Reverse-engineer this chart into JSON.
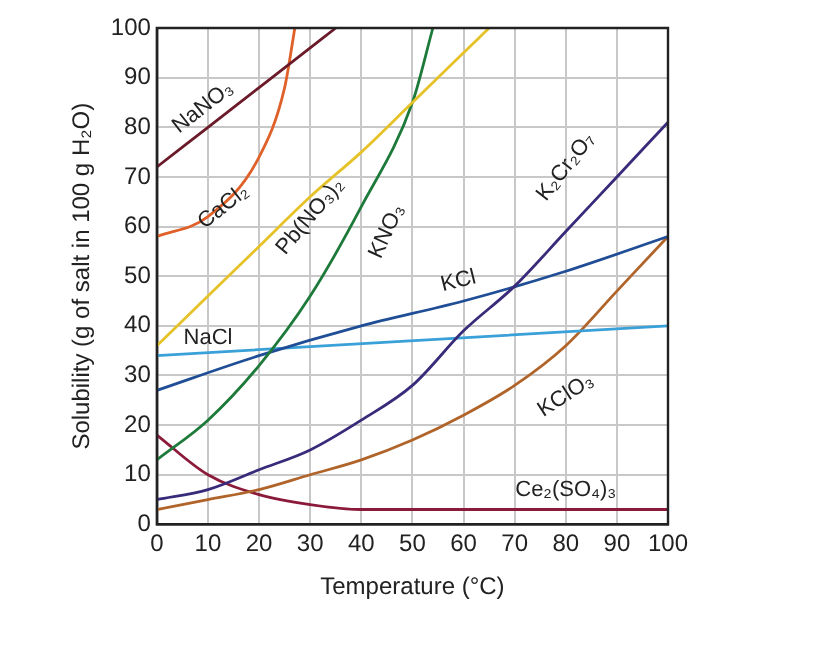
{
  "chart_data": {
    "type": "line",
    "xlabel": "Temperature (°C)",
    "ylabel": "Solubility (g of salt in 100 g H₂O)",
    "xlim": [
      0,
      100
    ],
    "ylim": [
      0,
      100
    ],
    "xticks": [
      0,
      10,
      20,
      30,
      40,
      50,
      60,
      70,
      80,
      90,
      100
    ],
    "yticks": [
      0,
      10,
      20,
      30,
      40,
      50,
      60,
      70,
      80,
      90,
      100
    ],
    "grid": true,
    "legend": false,
    "marker": "none",
    "series": [
      {
        "name": "NaNO₃",
        "color": "#6b1a2a",
        "x": [
          0,
          10,
          20,
          30,
          35
        ],
        "values": [
          72,
          80,
          88,
          96,
          100
        ]
      },
      {
        "name": "CaCl₂",
        "color": "#e0602a",
        "x": [
          0,
          10,
          20,
          25,
          27
        ],
        "values": [
          58,
          62,
          74,
          88,
          100
        ]
      },
      {
        "name": "Pb(NO₃)₂",
        "color": "#e6c229",
        "x": [
          0,
          10,
          20,
          30,
          40,
          50,
          60,
          65
        ],
        "values": [
          36,
          46,
          56,
          66,
          75,
          85,
          95,
          100
        ]
      },
      {
        "name": "KNO₃",
        "color": "#1e7a3a",
        "x": [
          0,
          10,
          20,
          30,
          40,
          50,
          54
        ],
        "values": [
          13,
          21,
          32,
          46,
          64,
          85,
          100
        ]
      },
      {
        "name": "K₂Cr₂O₇",
        "color": "#3a2a7a",
        "x": [
          0,
          10,
          20,
          30,
          40,
          50,
          60,
          70,
          80,
          90,
          100
        ],
        "values": [
          5,
          7,
          11,
          15,
          21,
          28,
          39,
          48,
          59,
          70,
          81
        ]
      },
      {
        "name": "KCl",
        "color": "#1f4e96",
        "x": [
          0,
          20,
          40,
          60,
          80,
          100
        ],
        "values": [
          27,
          34,
          40,
          45,
          51,
          58
        ]
      },
      {
        "name": "NaCl",
        "color": "#3aa0d8",
        "x": [
          0,
          100
        ],
        "values": [
          34,
          40
        ]
      },
      {
        "name": "KClO₃",
        "color": "#b0642a",
        "x": [
          0,
          10,
          20,
          30,
          40,
          50,
          60,
          70,
          80,
          90,
          100
        ],
        "values": [
          3,
          5,
          7,
          10,
          13,
          17,
          22,
          28,
          36,
          47,
          58
        ]
      },
      {
        "name": "Ce₂(SO₄)₃",
        "color": "#8b1a3a",
        "x": [
          0,
          10,
          20,
          30,
          40,
          100
        ],
        "values": [
          18,
          10,
          6,
          4,
          3,
          3
        ]
      }
    ]
  }
}
